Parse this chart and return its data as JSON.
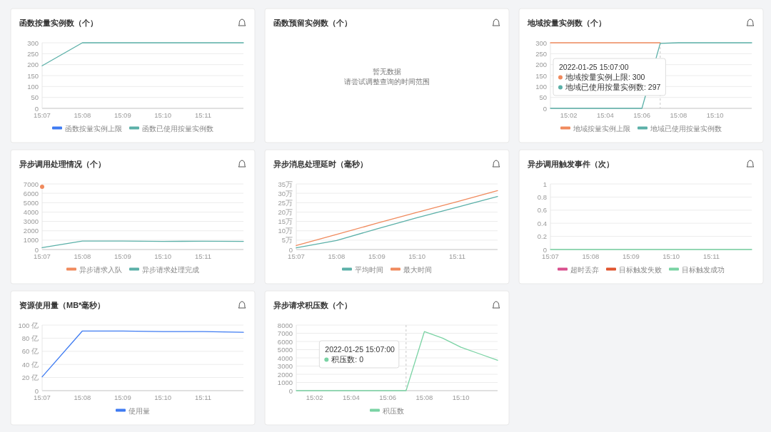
{
  "chart_data": [
    {
      "type": "line",
      "title": "函数按量实例数（个）",
      "x": [
        "2022-01-25T15:07",
        "2022-01-25T15:08",
        "2022-01-25T15:09",
        "2022-01-25T15:10",
        "2022-01-25T15:11",
        "2022-01-25T15:12"
      ],
      "series": [
        {
          "name": "函数按量实例上限",
          "color": "#3e7bf2",
          "values": [
            null,
            null,
            null,
            null,
            null,
            null
          ]
        },
        {
          "name": "函数已使用按量实例数",
          "color": "#5bb0a8",
          "values": [
            195,
            300,
            300,
            300,
            300,
            300
          ]
        }
      ],
      "xlim": [
        "2022-01-25T15:07",
        "2022-01-25T15:12"
      ],
      "xticks": [
        {
          "value": "2022-01-25T15:07",
          "label": "15:07"
        },
        {
          "value": "2022-01-25T15:08",
          "label": "15:08"
        },
        {
          "value": "2022-01-25T15:09",
          "label": "15:09"
        },
        {
          "value": "2022-01-25T15:10",
          "label": "15:10"
        },
        {
          "value": "2022-01-25T15:11",
          "label": "15:11"
        }
      ],
      "ylim": [
        0,
        300
      ],
      "yticks": [
        0,
        50,
        100,
        150,
        200,
        250,
        300
      ],
      "grid": "y",
      "legend": "bottom"
    },
    {
      "type": "other",
      "title": "函数预留实例数（个）",
      "annotations": [
        "暂无数据",
        "请尝试调整查询的时间范围"
      ]
    },
    {
      "type": "line",
      "title": "地域按量实例数（个）",
      "x": [
        "2022-01-25T15:01",
        "2022-01-25T15:02",
        "2022-01-25T15:03",
        "2022-01-25T15:04",
        "2022-01-25T15:05",
        "2022-01-25T15:06",
        "2022-01-25T15:07",
        "2022-01-25T15:08",
        "2022-01-25T15:09",
        "2022-01-25T15:10",
        "2022-01-25T15:11",
        "2022-01-25T15:12"
      ],
      "series": [
        {
          "name": "地域按量实例上限",
          "color": "#f08a5d",
          "values": [
            300,
            300,
            300,
            300,
            300,
            300,
            300,
            null,
            null,
            null,
            null,
            null
          ]
        },
        {
          "name": "地域已使用按量实例数",
          "color": "#5bb0a8",
          "values": [
            0,
            0,
            0,
            0,
            0,
            0,
            297,
            300,
            300,
            300,
            300,
            300
          ]
        }
      ],
      "xlim": [
        "2022-01-25T15:01",
        "2022-01-25T15:12"
      ],
      "xticks": [
        {
          "value": "2022-01-25T15:02",
          "label": "15:02"
        },
        {
          "value": "2022-01-25T15:04",
          "label": "15:04"
        },
        {
          "value": "2022-01-25T15:06",
          "label": "15:06"
        },
        {
          "value": "2022-01-25T15:08",
          "label": "15:08"
        },
        {
          "value": "2022-01-25T15:10",
          "label": "15:10"
        }
      ],
      "ylim": [
        0,
        300
      ],
      "yticks": [
        0,
        50,
        100,
        150,
        200,
        250,
        300
      ],
      "grid": "y",
      "legend": "bottom",
      "ref_lines": [
        {
          "axis": "x",
          "value": "2022-01-25T15:07",
          "line_style": "dashed",
          "color": "#c8c8c8"
        }
      ],
      "annotations": [
        "2022-01-25 15:07:00",
        "地域按量实例上限: 300",
        "地域已使用按量实例数: 297"
      ]
    },
    {
      "type": "line",
      "title": "异步调用处理情况（个）",
      "x": [
        "2022-01-25T15:07",
        "2022-01-25T15:08",
        "2022-01-25T15:09",
        "2022-01-25T15:10",
        "2022-01-25T15:11",
        "2022-01-25T15:12"
      ],
      "series": [
        {
          "name": "异步请求入队",
          "color": "#f08a5d",
          "marker": "circle",
          "values": [
            6700,
            null,
            null,
            null,
            null,
            null
          ]
        },
        {
          "name": "异步请求处理完成",
          "color": "#5bb0a8",
          "values": [
            200,
            900,
            900,
            870,
            880,
            870
          ]
        }
      ],
      "xlim": [
        "2022-01-25T15:07",
        "2022-01-25T15:12"
      ],
      "xticks": [
        {
          "value": "2022-01-25T15:07",
          "label": "15:07"
        },
        {
          "value": "2022-01-25T15:08",
          "label": "15:08"
        },
        {
          "value": "2022-01-25T15:09",
          "label": "15:09"
        },
        {
          "value": "2022-01-25T15:10",
          "label": "15:10"
        },
        {
          "value": "2022-01-25T15:11",
          "label": "15:11"
        }
      ],
      "ylim": [
        0,
        7000
      ],
      "yticks": [
        0,
        1000,
        2000,
        3000,
        4000,
        5000,
        6000,
        7000
      ],
      "grid": "y",
      "legend": "bottom"
    },
    {
      "type": "line",
      "title": "异步消息处理延时（毫秒）",
      "x": [
        "2022-01-25T15:07",
        "2022-01-25T15:08",
        "2022-01-25T15:09",
        "2022-01-25T15:10",
        "2022-01-25T15:11",
        "2022-01-25T15:12"
      ],
      "series": [
        {
          "name": "平均时间",
          "color": "#5bb0a8",
          "values": [
            0.9,
            4.8,
            11,
            17,
            22.6,
            28.3
          ]
        },
        {
          "name": "最大时间",
          "color": "#f08a5d",
          "values": [
            2.1,
            8,
            14,
            19.8,
            25.5,
            31.4
          ]
        }
      ],
      "xlim": [
        "2022-01-25T15:07",
        "2022-01-25T15:12"
      ],
      "xticks": [
        {
          "value": "2022-01-25T15:07",
          "label": "15:07"
        },
        {
          "value": "2022-01-25T15:08",
          "label": "15:08"
        },
        {
          "value": "2022-01-25T15:09",
          "label": "15:09"
        },
        {
          "value": "2022-01-25T15:10",
          "label": "15:10"
        },
        {
          "value": "2022-01-25T15:11",
          "label": "15:11"
        }
      ],
      "ylim": [
        0,
        35
      ],
      "yticks": [
        0,
        {
          "value": 5,
          "label": "5万"
        },
        {
          "value": 10,
          "label": "10万"
        },
        {
          "value": 15,
          "label": "15万"
        },
        {
          "value": 20,
          "label": "20万"
        },
        {
          "value": 25,
          "label": "25万"
        },
        {
          "value": 30,
          "label": "30万"
        },
        {
          "value": 35,
          "label": "35万"
        }
      ],
      "grid": "y",
      "legend": "bottom"
    },
    {
      "type": "line",
      "title": "异步调用触发事件（次）",
      "x": [
        "2022-01-25T15:07",
        "2022-01-25T15:08",
        "2022-01-25T15:09",
        "2022-01-25T15:10",
        "2022-01-25T15:11",
        "2022-01-25T15:12"
      ],
      "series": [
        {
          "name": "超时丢弃",
          "color": "#d9508e",
          "values": [
            null,
            null,
            null,
            null,
            null,
            null
          ]
        },
        {
          "name": "目标触发失败",
          "color": "#e0552f",
          "values": [
            null,
            null,
            null,
            null,
            null,
            null
          ]
        },
        {
          "name": "目标触发成功",
          "color": "#7ad3a4",
          "values": [
            0,
            0,
            0,
            0,
            0,
            0
          ]
        }
      ],
      "xlim": [
        "2022-01-25T15:07",
        "2022-01-25T15:12"
      ],
      "xticks": [
        {
          "value": "2022-01-25T15:07",
          "label": "15:07"
        },
        {
          "value": "2022-01-25T15:08",
          "label": "15:08"
        },
        {
          "value": "2022-01-25T15:09",
          "label": "15:09"
        },
        {
          "value": "2022-01-25T15:10",
          "label": "15:10"
        },
        {
          "value": "2022-01-25T15:11",
          "label": "15:11"
        }
      ],
      "ylim": [
        0,
        1
      ],
      "yticks": [
        0,
        0.2,
        0.4,
        0.6,
        0.8,
        1
      ],
      "grid": "y",
      "legend": "bottom"
    },
    {
      "type": "line",
      "title": "资源使用量（MB*毫秒）",
      "x": [
        "2022-01-25T15:07",
        "2022-01-25T15:08",
        "2022-01-25T15:09",
        "2022-01-25T15:10",
        "2022-01-25T15:11",
        "2022-01-25T15:12"
      ],
      "series": [
        {
          "name": "使用量",
          "color": "#3e7bf2",
          "values": [
            21,
            91,
            91,
            90,
            90,
            89
          ]
        }
      ],
      "xlim": [
        "2022-01-25T15:07",
        "2022-01-25T15:12"
      ],
      "xticks": [
        {
          "value": "2022-01-25T15:07",
          "label": "15:07"
        },
        {
          "value": "2022-01-25T15:08",
          "label": "15:08"
        },
        {
          "value": "2022-01-25T15:09",
          "label": "15:09"
        },
        {
          "value": "2022-01-25T15:10",
          "label": "15:10"
        },
        {
          "value": "2022-01-25T15:11",
          "label": "15:11"
        }
      ],
      "ylim": [
        0,
        100
      ],
      "yticks": [
        0,
        {
          "value": 20,
          "label": "20 亿"
        },
        {
          "value": 40,
          "label": "40 亿"
        },
        {
          "value": 60,
          "label": "60 亿"
        },
        {
          "value": 80,
          "label": "80 亿"
        },
        {
          "value": 100,
          "label": "100 亿"
        }
      ],
      "grid": "y",
      "legend": "bottom"
    },
    {
      "type": "line",
      "title": "异步请求积压数（个）",
      "x": [
        "2022-01-25T15:01",
        "2022-01-25T15:02",
        "2022-01-25T15:03",
        "2022-01-25T15:04",
        "2022-01-25T15:05",
        "2022-01-25T15:06",
        "2022-01-25T15:07",
        "2022-01-25T15:08",
        "2022-01-25T15:09",
        "2022-01-25T15:10",
        "2022-01-25T15:11",
        "2022-01-25T15:12"
      ],
      "series": [
        {
          "name": "积压数",
          "color": "#7ad3a4",
          "values": [
            0,
            0,
            0,
            0,
            0,
            0,
            0,
            7200,
            6400,
            5300,
            4500,
            3700
          ]
        }
      ],
      "xlim": [
        "2022-01-25T15:01",
        "2022-01-25T15:12"
      ],
      "xticks": [
        {
          "value": "2022-01-25T15:02",
          "label": "15:02"
        },
        {
          "value": "2022-01-25T15:04",
          "label": "15:04"
        },
        {
          "value": "2022-01-25T15:06",
          "label": "15:06"
        },
        {
          "value": "2022-01-25T15:08",
          "label": "15:08"
        },
        {
          "value": "2022-01-25T15:10",
          "label": "15:10"
        }
      ],
      "ylim": [
        0,
        8000
      ],
      "yticks": [
        0,
        1000,
        2000,
        3000,
        4000,
        5000,
        6000,
        7000,
        8000
      ],
      "grid": "y",
      "legend": "bottom",
      "ref_lines": [
        {
          "axis": "x",
          "value": "2022-01-25T15:07",
          "line_style": "dashed",
          "color": "#c8c8c8"
        }
      ],
      "annotations": [
        "2022-01-25 15:07:00",
        "积压数: 0"
      ]
    }
  ]
}
